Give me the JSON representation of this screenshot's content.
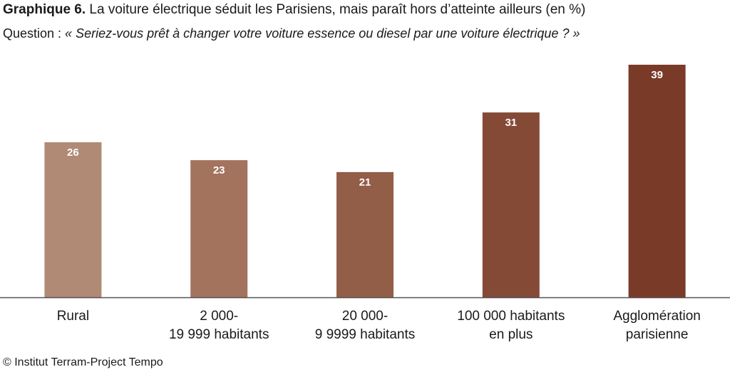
{
  "header": {
    "title_bold": "Graphique 6.",
    "title_rest": " La voiture électrique séduit les Parisiens, mais paraît hors d’atteinte ailleurs (en %)",
    "question_prefix": "Question : ",
    "question_text": "« Seriez-vous prêt à changer votre voiture essence ou diesel par une voiture électrique ? »"
  },
  "footer": {
    "source": "© Institut Terram-Project Tempo"
  },
  "chart_data": {
    "type": "bar",
    "categories": [
      [
        "Rural"
      ],
      [
        "2 000-",
        "19 999 habitants"
      ],
      [
        "20 000-",
        "9 9999 habitants"
      ],
      [
        "100 000 habitants",
        "en plus"
      ],
      [
        "Agglomération",
        "parisienne"
      ]
    ],
    "values": [
      26,
      23,
      21,
      31,
      39
    ],
    "data_labels": [
      "26",
      "23",
      "21",
      "31",
      "39"
    ],
    "colors": [
      "#b08a75",
      "#a3735d",
      "#925e48",
      "#854a36",
      "#7a3a28"
    ],
    "ylim": [
      0,
      39
    ],
    "grid": false,
    "legend": "none"
  }
}
